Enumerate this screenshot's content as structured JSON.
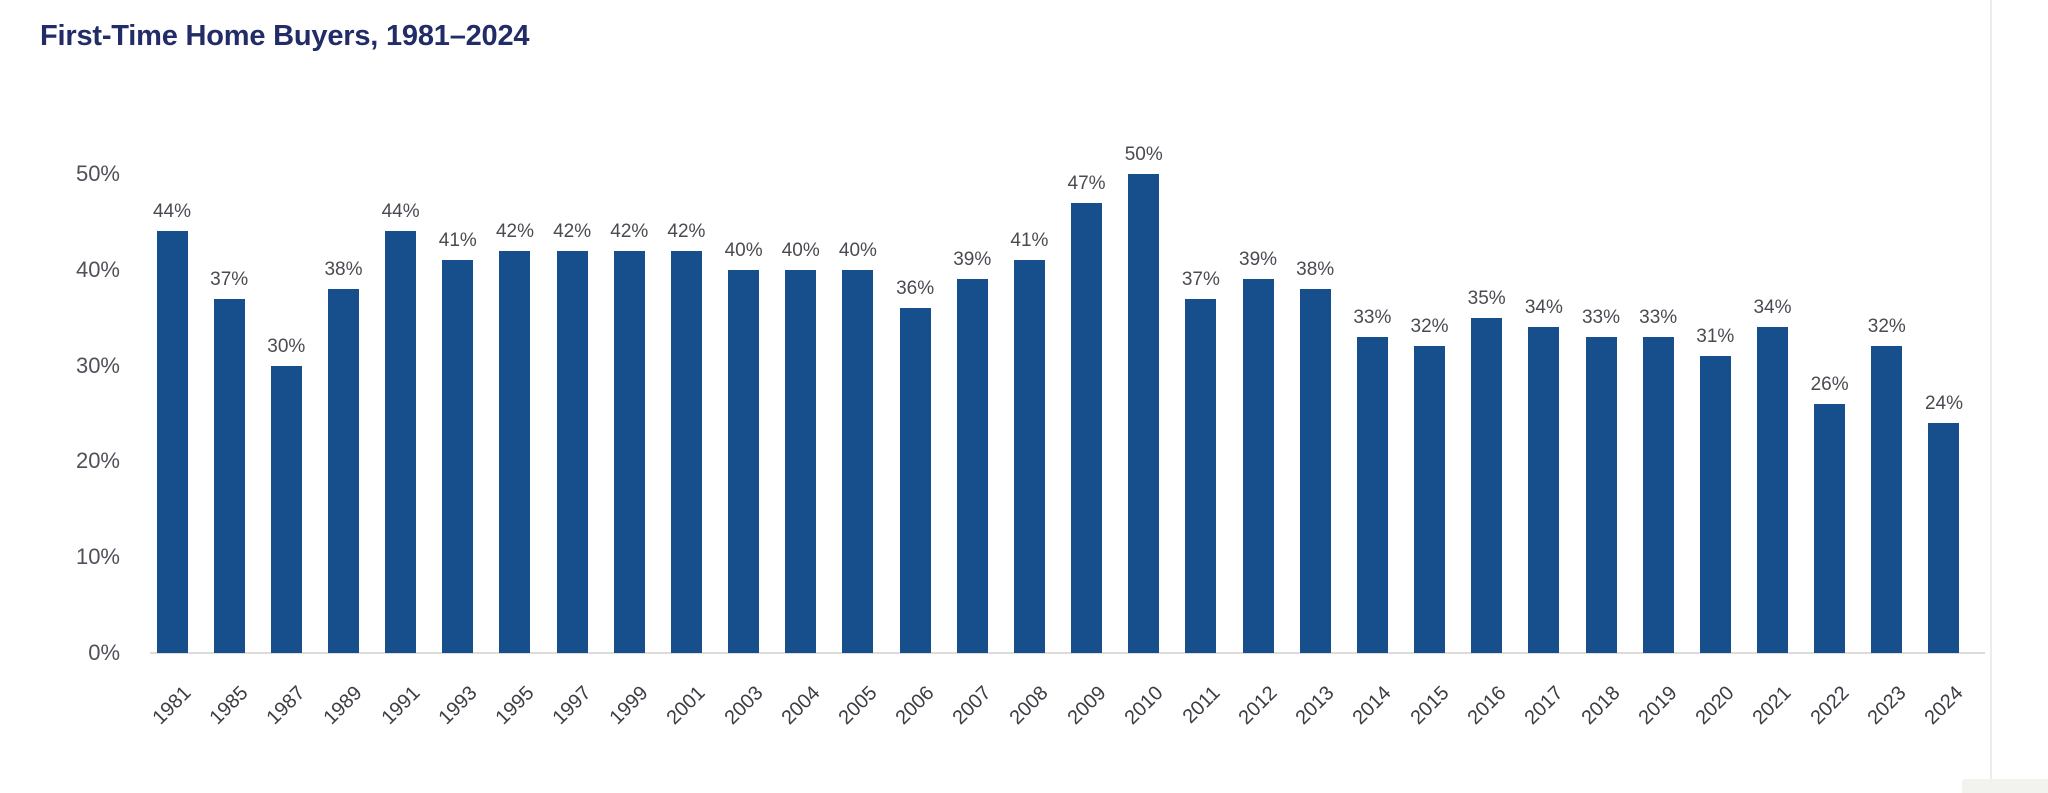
{
  "page": {
    "title": "First-Time Home Buyers, 1981–2024"
  },
  "colors": {
    "bar": "#164F8B",
    "title": "#222C66",
    "value_label": "#4A4A52",
    "axis_label": "#50505A",
    "baseline": "#DCDCDC"
  },
  "chart_data": {
    "type": "bar",
    "title": "First-Time Home Buyers, 1981–2024",
    "xlabel": "",
    "ylabel": "",
    "ylim": [
      0,
      50
    ],
    "grid": false,
    "legend": false,
    "value_suffix": "%",
    "categories": [
      "1981",
      "1985",
      "1987",
      "1989",
      "1991",
      "1993",
      "1995",
      "1997",
      "1999",
      "2001",
      "2003",
      "2004",
      "2005",
      "2006",
      "2007",
      "2008",
      "2009",
      "2010",
      "2011",
      "2012",
      "2013",
      "2014",
      "2015",
      "2016",
      "2017",
      "2018",
      "2019",
      "2020",
      "2021",
      "2022",
      "2023",
      "2024"
    ],
    "values": [
      44,
      37,
      30,
      38,
      44,
      41,
      42,
      42,
      42,
      42,
      40,
      40,
      40,
      36,
      39,
      41,
      47,
      50,
      37,
      39,
      38,
      33,
      32,
      35,
      34,
      33,
      33,
      31,
      34,
      26,
      32,
      24
    ],
    "value_labels": [
      "44%",
      "37%",
      "30%",
      "38%",
      "44%",
      "41%",
      "42%",
      "42%",
      "42%",
      "42%",
      "40%",
      "40%",
      "40%",
      "36%",
      "39%",
      "41%",
      "47%",
      "50%",
      "37%",
      "39%",
      "38%",
      "33%",
      "32%",
      "35%",
      "34%",
      "33%",
      "33%",
      "31%",
      "34%",
      "26%",
      "32%",
      "24%"
    ],
    "y_ticks": [
      {
        "label": "50%",
        "value": 50
      },
      {
        "label": "40%",
        "value": 40
      },
      {
        "label": "30%",
        "value": 30
      },
      {
        "label": "20%",
        "value": 20
      },
      {
        "label": "10%",
        "value": 10
      },
      {
        "label": "0%",
        "value": 0
      }
    ]
  }
}
